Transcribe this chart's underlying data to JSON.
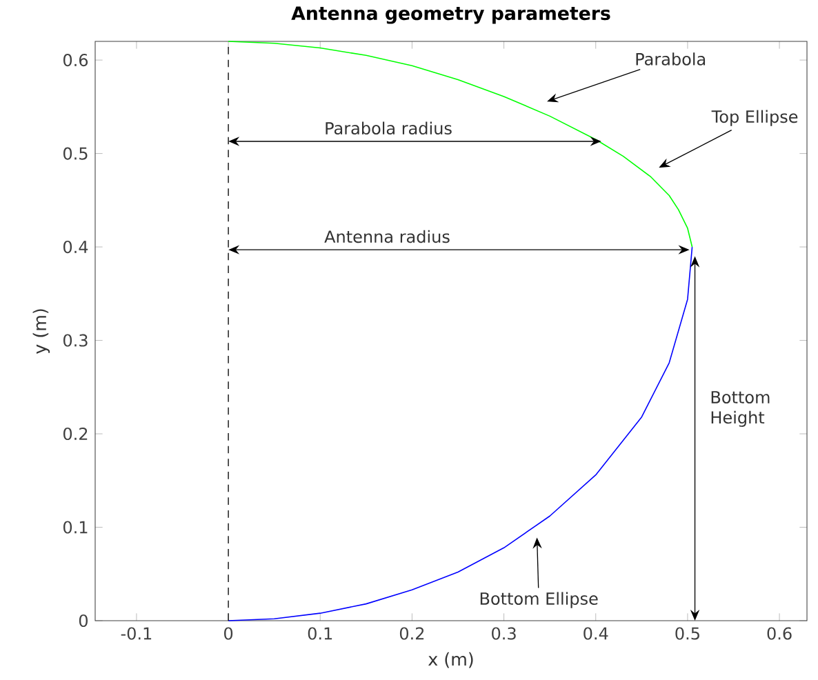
{
  "chart_data": {
    "type": "line",
    "title": "Antenna geometry parameters",
    "xlabel": "x (m)",
    "ylabel": "y (m)",
    "series": [
      {
        "color": "#00ff00",
        "x": [
          0,
          0.05,
          0.1,
          0.15,
          0.2,
          0.25,
          0.3,
          0.35,
          0.4,
          0.43,
          0.46,
          0.48,
          0.49,
          0.5,
          0.505
        ],
        "values": [
          0.62,
          0.618,
          0.613,
          0.605,
          0.594,
          0.579,
          0.561,
          0.54,
          0.515,
          0.497,
          0.475,
          0.455,
          0.44,
          0.42,
          0.4
        ]
      },
      {
        "color": "#0000ff",
        "x": [
          0,
          0.05,
          0.1,
          0.15,
          0.2,
          0.25,
          0.3,
          0.35,
          0.4,
          0.45,
          0.48,
          0.5,
          0.505
        ],
        "values": [
          0,
          0.002,
          0.008,
          0.018,
          0.033,
          0.052,
          0.078,
          0.112,
          0.156,
          0.218,
          0.276,
          0.344,
          0.4
        ]
      }
    ],
    "xlim": [
      -0.145,
      0.63
    ],
    "ylim": [
      0,
      0.62
    ],
    "xticks": [
      -0.1,
      0,
      0.1,
      0.2,
      0.3,
      0.4,
      0.5,
      0.6
    ],
    "yticks": [
      0,
      0.1,
      0.2,
      0.3,
      0.4,
      0.5,
      0.6
    ],
    "ref_lines": [
      {
        "axis": "x",
        "value": 0,
        "color": "#000000",
        "line_style": "dashed"
      }
    ],
    "annotations": [
      "Parabola",
      "Top Ellipse",
      "Parabola radius",
      "Antenna radius",
      "Bottom Height",
      "Bottom Ellipse"
    ],
    "grid": false
  }
}
